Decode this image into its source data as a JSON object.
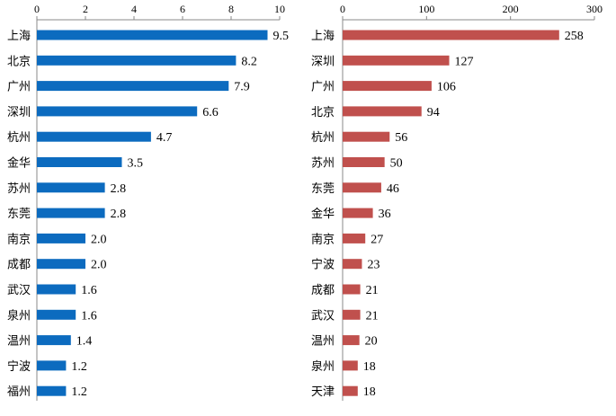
{
  "chart_data": [
    {
      "type": "bar",
      "orientation": "horizontal",
      "categories": [
        "上海",
        "北京",
        "广州",
        "深圳",
        "杭州",
        "金华",
        "苏州",
        "东莞",
        "南京",
        "成都",
        "武汉",
        "泉州",
        "温州",
        "宁波",
        "福州"
      ],
      "values": [
        9.5,
        8.2,
        7.9,
        6.6,
        4.7,
        3.5,
        2.8,
        2.8,
        2.0,
        2.0,
        1.6,
        1.6,
        1.4,
        1.2,
        1.2
      ],
      "value_labels": [
        "9.5",
        "8.2",
        "7.9",
        "6.6",
        "4.7",
        "3.5",
        "2.8",
        "2.8",
        "2.0",
        "2.0",
        "1.6",
        "1.6",
        "1.4",
        "1.2",
        "1.2"
      ],
      "xlim": [
        0,
        10
      ],
      "ticks": [
        "0",
        "2",
        "4",
        "6",
        "8",
        "10"
      ],
      "axis_position": "top",
      "color": "#0c6bbf",
      "grid": false
    },
    {
      "type": "bar",
      "orientation": "horizontal",
      "categories": [
        "上海",
        "深圳",
        "广州",
        "北京",
        "杭州",
        "苏州",
        "东莞",
        "金华",
        "南京",
        "宁波",
        "成都",
        "武汉",
        "温州",
        "泉州",
        "天津"
      ],
      "values": [
        258,
        127,
        106,
        94,
        56,
        50,
        46,
        36,
        27,
        23,
        21,
        21,
        20,
        18,
        18
      ],
      "value_labels": [
        "258",
        "127",
        "106",
        "94",
        "56",
        "50",
        "46",
        "36",
        "27",
        "23",
        "21",
        "21",
        "20",
        "18",
        "18"
      ],
      "xlim": [
        0,
        300
      ],
      "ticks": [
        "0",
        "100",
        "200",
        "300"
      ],
      "axis_position": "top",
      "color": "#c0504d",
      "grid": false
    }
  ]
}
